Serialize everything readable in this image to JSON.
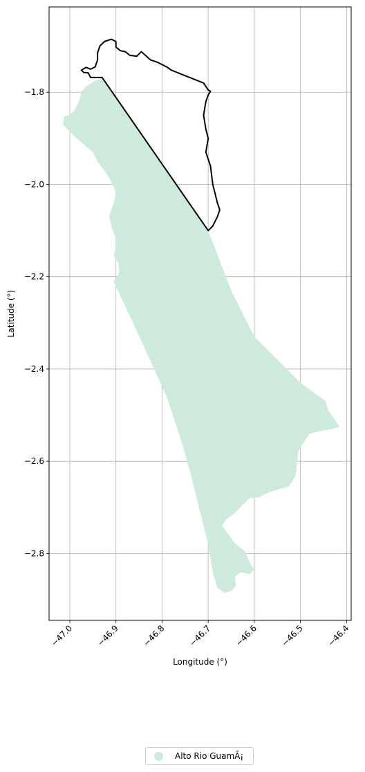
{
  "chart_data": {
    "type": "map",
    "xlabel": "Longitude (°)",
    "ylabel": "Latitude (°)",
    "xlim": [
      -47.045,
      -46.39
    ],
    "ylim": [
      -2.945,
      -1.615
    ],
    "x_ticks": [
      -47.0,
      -46.9,
      -46.8,
      -46.7,
      -46.6,
      -46.5,
      -46.4
    ],
    "x_tick_labels": [
      "−47.0",
      "−46.9",
      "−46.8",
      "−46.7",
      "−46.6",
      "−46.5",
      "−46.4"
    ],
    "y_ticks": [
      -1.8,
      -2.0,
      -2.2,
      -2.4,
      -2.6,
      -2.8
    ],
    "y_tick_labels": [
      "−1.8",
      "−2.0",
      "−2.2",
      "−2.4",
      "−2.6",
      "−2.8"
    ],
    "grid": true,
    "legend_position": "bottom-center",
    "fill_color": "#cdeadc",
    "outline_color": "#000000",
    "regions": [
      {
        "name": "Alto Rio GuamÃ¡",
        "style": "fill",
        "coords": [
          [
            -46.925,
            -1.77
          ],
          [
            -46.945,
            -1.775
          ],
          [
            -46.965,
            -1.787
          ],
          [
            -46.975,
            -1.8
          ],
          [
            -46.98,
            -1.82
          ],
          [
            -46.99,
            -1.84
          ],
          [
            -47.0,
            -1.848
          ],
          [
            -47.012,
            -1.853
          ],
          [
            -47.015,
            -1.87
          ],
          [
            -47.0,
            -1.885
          ],
          [
            -46.985,
            -1.9
          ],
          [
            -46.968,
            -1.915
          ],
          [
            -46.95,
            -1.93
          ],
          [
            -46.94,
            -1.95
          ],
          [
            -46.925,
            -1.97
          ],
          [
            -46.915,
            -1.985
          ],
          [
            -46.905,
            -2.005
          ],
          [
            -46.9,
            -2.02
          ],
          [
            -46.905,
            -2.04
          ],
          [
            -46.91,
            -2.055
          ],
          [
            -46.915,
            -2.07
          ],
          [
            -46.91,
            -2.09
          ],
          [
            -46.905,
            -2.105
          ],
          [
            -46.9,
            -2.115
          ],
          [
            -46.9,
            -2.135
          ],
          [
            -46.905,
            -2.155
          ],
          [
            -46.895,
            -2.17
          ],
          [
            -46.893,
            -2.19
          ],
          [
            -46.9,
            -2.205
          ],
          [
            -46.905,
            -2.21
          ],
          [
            -46.84,
            -2.35
          ],
          [
            -46.79,
            -2.46
          ],
          [
            -46.76,
            -2.55
          ],
          [
            -46.74,
            -2.62
          ],
          [
            -46.72,
            -2.7
          ],
          [
            -46.7,
            -2.78
          ],
          [
            -46.69,
            -2.84
          ],
          [
            -46.68,
            -2.875
          ],
          [
            -46.665,
            -2.885
          ],
          [
            -46.65,
            -2.882
          ],
          [
            -46.64,
            -2.87
          ],
          [
            -46.642,
            -2.85
          ],
          [
            -46.63,
            -2.84
          ],
          [
            -46.61,
            -2.845
          ],
          [
            -46.6,
            -2.835
          ],
          [
            -46.61,
            -2.82
          ],
          [
            -46.62,
            -2.795
          ],
          [
            -46.64,
            -2.78
          ],
          [
            -46.655,
            -2.76
          ],
          [
            -46.67,
            -2.74
          ],
          [
            -46.66,
            -2.725
          ],
          [
            -46.645,
            -2.715
          ],
          [
            -46.63,
            -2.7
          ],
          [
            -46.61,
            -2.68
          ],
          [
            -46.59,
            -2.678
          ],
          [
            -46.57,
            -2.668
          ],
          [
            -46.545,
            -2.66
          ],
          [
            -46.525,
            -2.655
          ],
          [
            -46.51,
            -2.63
          ],
          [
            -46.505,
            -2.58
          ],
          [
            -46.5,
            -2.57
          ],
          [
            -46.49,
            -2.555
          ],
          [
            -46.48,
            -2.54
          ],
          [
            -46.46,
            -2.535
          ],
          [
            -46.43,
            -2.53
          ],
          [
            -46.415,
            -2.525
          ],
          [
            -46.425,
            -2.51
          ],
          [
            -46.44,
            -2.49
          ],
          [
            -46.445,
            -2.47
          ],
          [
            -46.5,
            -2.43
          ],
          [
            -46.6,
            -2.33
          ],
          [
            -46.65,
            -2.23
          ],
          [
            -46.7,
            -2.1
          ],
          [
            -46.93,
            -1.77
          ]
        ]
      },
      {
        "name": "",
        "style": "outline",
        "coords": [
          [
            -46.93,
            -1.768
          ],
          [
            -46.955,
            -1.768
          ],
          [
            -46.96,
            -1.758
          ],
          [
            -46.97,
            -1.757
          ],
          [
            -46.975,
            -1.752
          ],
          [
            -46.965,
            -1.746
          ],
          [
            -46.955,
            -1.75
          ],
          [
            -46.945,
            -1.745
          ],
          [
            -46.94,
            -1.73
          ],
          [
            -46.94,
            -1.715
          ],
          [
            -46.935,
            -1.7
          ],
          [
            -46.925,
            -1.69
          ],
          [
            -46.91,
            -1.685
          ],
          [
            -46.9,
            -1.69
          ],
          [
            -46.9,
            -1.702
          ],
          [
            -46.89,
            -1.71
          ],
          [
            -46.88,
            -1.712
          ],
          [
            -46.87,
            -1.72
          ],
          [
            -46.855,
            -1.722
          ],
          [
            -46.845,
            -1.712
          ],
          [
            -46.825,
            -1.73
          ],
          [
            -46.81,
            -1.735
          ],
          [
            -46.8,
            -1.74
          ],
          [
            -46.79,
            -1.745
          ],
          [
            -46.78,
            -1.752
          ],
          [
            -46.71,
            -1.78
          ],
          [
            -46.7,
            -1.795
          ],
          [
            -46.695,
            -1.798
          ],
          [
            -46.7,
            -1.806
          ],
          [
            -46.705,
            -1.82
          ],
          [
            -46.71,
            -1.85
          ],
          [
            -46.705,
            -1.88
          ],
          [
            -46.7,
            -1.9
          ],
          [
            -46.705,
            -1.93
          ],
          [
            -46.695,
            -1.96
          ],
          [
            -46.69,
            -2.0
          ],
          [
            -46.685,
            -2.02
          ],
          [
            -46.68,
            -2.04
          ],
          [
            -46.675,
            -2.055
          ],
          [
            -46.68,
            -2.07
          ],
          [
            -46.69,
            -2.09
          ],
          [
            -46.7,
            -2.1
          ],
          [
            -46.93,
            -1.768
          ]
        ]
      }
    ]
  },
  "legend": {
    "label": "Alto Rio GuamÃ¡",
    "marker_color": "#cdeadc"
  }
}
